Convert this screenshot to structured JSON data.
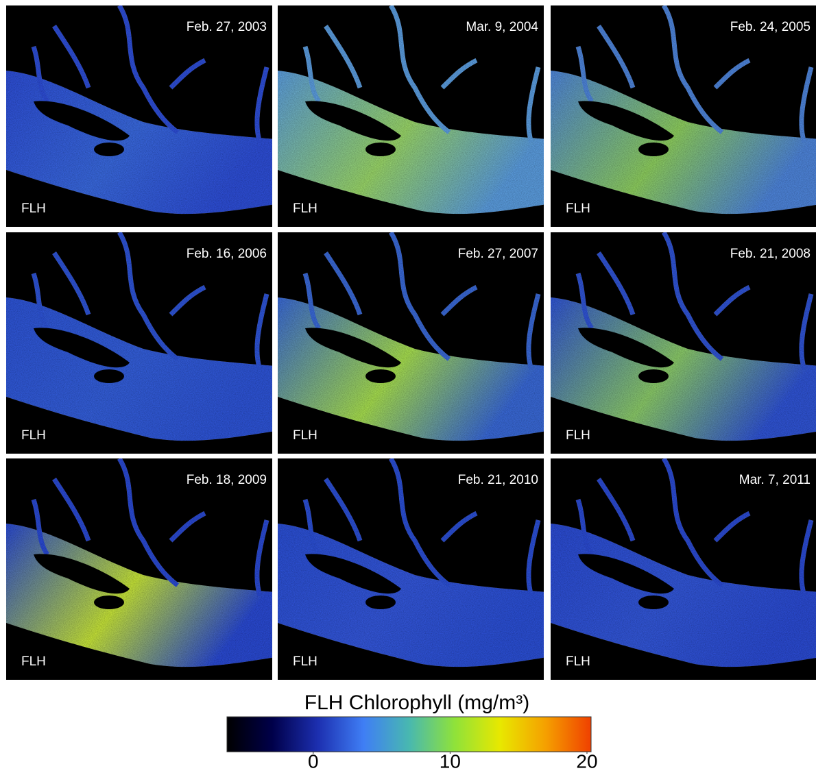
{
  "panels": [
    {
      "date": "Feb. 27, 2003",
      "label": "FLH"
    },
    {
      "date": "Mar. 9, 2004",
      "label": "FLH"
    },
    {
      "date": "Feb. 24, 2005",
      "label": "FLH"
    },
    {
      "date": "Feb. 16, 2006",
      "label": "FLH"
    },
    {
      "date": "Feb. 27, 2007",
      "label": "FLH"
    },
    {
      "date": "Feb. 21, 2008",
      "label": "FLH"
    },
    {
      "date": "Feb. 18, 2009",
      "label": "FLH"
    },
    {
      "date": "Feb. 21, 2010",
      "label": "FLH"
    },
    {
      "date": "Mar. 7, 2011",
      "label": "FLH"
    }
  ],
  "colorbar": {
    "title": "FLH Chlorophyll (mg/m³)",
    "range": [
      -6.3,
      20.3
    ],
    "ticks": [
      0,
      10,
      20
    ],
    "colors": [
      "#000000",
      "#00004a",
      "#1c2fb0",
      "#3f7ef5",
      "#48b8b0",
      "#8fe23a",
      "#e8e800",
      "#f5a000",
      "#f04000"
    ]
  }
}
